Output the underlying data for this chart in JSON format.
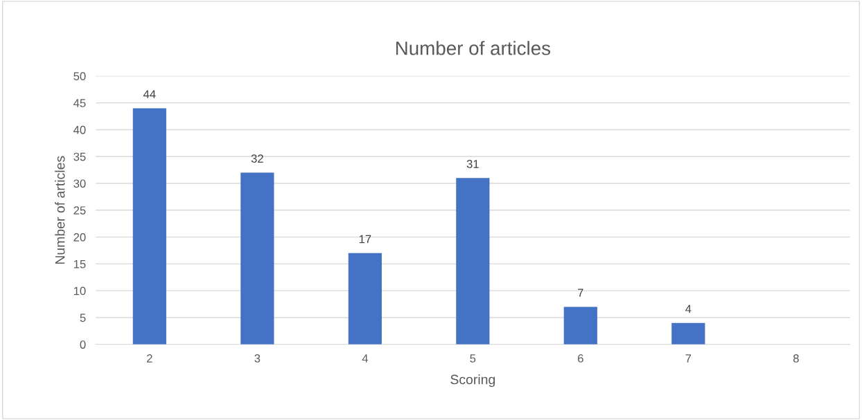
{
  "chart_data": {
    "type": "bar",
    "title": "Number of articles",
    "xlabel": "Scoring",
    "ylabel": "Number of articles",
    "categories": [
      "2",
      "3",
      "4",
      "5",
      "6",
      "7",
      "8"
    ],
    "values": [
      44,
      32,
      17,
      31,
      7,
      4,
      null
    ],
    "color": "#4472c4",
    "ylim": [
      0,
      50
    ],
    "yticks": [
      0,
      5,
      10,
      15,
      20,
      25,
      30,
      35,
      40,
      45,
      50
    ],
    "grid": "y",
    "data_labels": true
  }
}
